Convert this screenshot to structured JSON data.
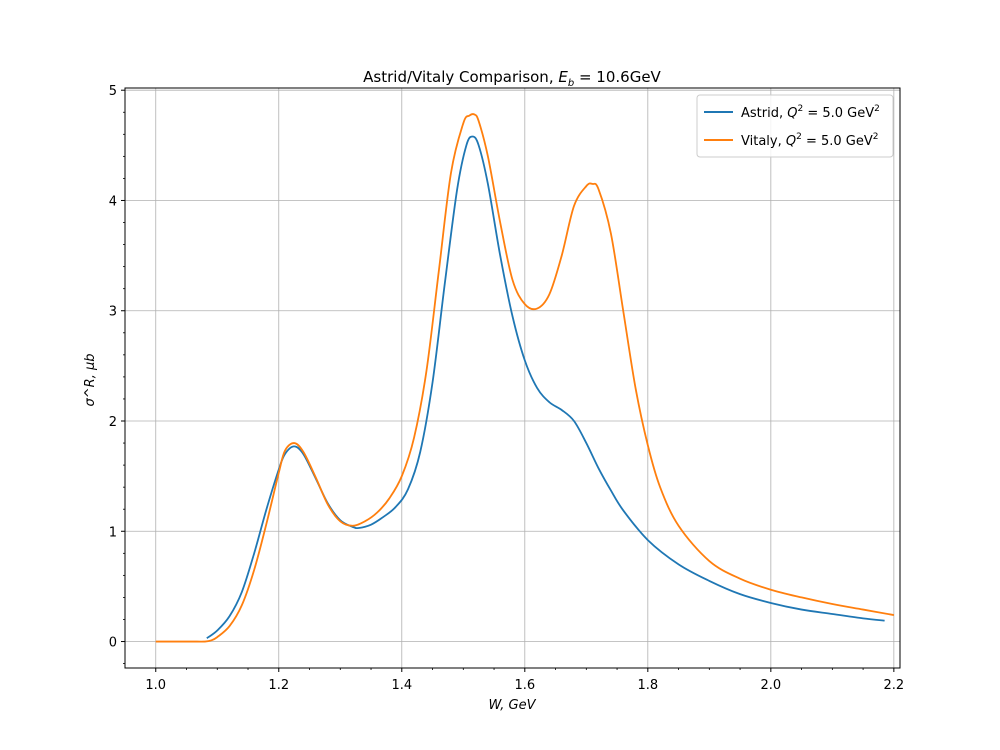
{
  "chart_data": {
    "type": "line",
    "title": "Astrid/Vitaly Comparison, E_b = 10.6GeV",
    "title_parts": {
      "main": "Astrid/Vitaly Comparison, ",
      "sym": "E",
      "sub": "b",
      "rest": " = 10.6GeV"
    },
    "xlabel": "W, GeV",
    "ylabel": "σ^R, μb",
    "xlim": [
      0.95,
      2.21
    ],
    "ylim": [
      -0.24,
      5.02
    ],
    "x_ticks": [
      1.0,
      1.2,
      1.4,
      1.6,
      1.8,
      2.0,
      2.2
    ],
    "x_tick_labels": [
      "1.0",
      "1.2",
      "1.4",
      "1.6",
      "1.8",
      "2.0",
      "2.2"
    ],
    "y_ticks": [
      0,
      1,
      2,
      3,
      4,
      5
    ],
    "y_tick_labels": [
      "0",
      "1",
      "2",
      "3",
      "4",
      "5"
    ],
    "grid": true,
    "legend_placement": "top-right",
    "series": [
      {
        "name": "Astrid, Q^2 = 5.0 GeV^2",
        "legend": {
          "pre": "Astrid, ",
          "q": "Q",
          "exp": "2",
          "mid": " = 5.0 GeV",
          "exp2": "2"
        },
        "color": "#1f77b4",
        "x": [
          1.083,
          1.1,
          1.12,
          1.14,
          1.16,
          1.18,
          1.2,
          1.21,
          1.225,
          1.24,
          1.26,
          1.28,
          1.3,
          1.32,
          1.33,
          1.35,
          1.37,
          1.39,
          1.41,
          1.43,
          1.45,
          1.47,
          1.49,
          1.505,
          1.515,
          1.525,
          1.54,
          1.56,
          1.58,
          1.6,
          1.62,
          1.64,
          1.66,
          1.68,
          1.7,
          1.72,
          1.74,
          1.76,
          1.8,
          1.85,
          1.9,
          1.95,
          2.0,
          2.05,
          2.1,
          2.15,
          2.185
        ],
        "y": [
          0.03,
          0.1,
          0.23,
          0.45,
          0.8,
          1.2,
          1.56,
          1.7,
          1.77,
          1.7,
          1.48,
          1.25,
          1.1,
          1.04,
          1.03,
          1.06,
          1.13,
          1.22,
          1.38,
          1.72,
          2.35,
          3.25,
          4.1,
          4.5,
          4.58,
          4.5,
          4.15,
          3.5,
          2.95,
          2.55,
          2.3,
          2.17,
          2.1,
          2.0,
          1.8,
          1.57,
          1.37,
          1.19,
          0.92,
          0.7,
          0.55,
          0.43,
          0.35,
          0.29,
          0.25,
          0.21,
          0.19
        ]
      },
      {
        "name": "Vitaly, Q^2 = 5.0 GeV^2",
        "legend": {
          "pre": "Vitaly, ",
          "q": "Q",
          "exp": "2",
          "mid": " = 5.0 GeV",
          "exp2": "2"
        },
        "color": "#ff7f0e",
        "x": [
          1.0,
          1.02,
          1.04,
          1.06,
          1.08,
          1.09,
          1.1,
          1.12,
          1.14,
          1.16,
          1.18,
          1.2,
          1.21,
          1.225,
          1.24,
          1.26,
          1.28,
          1.3,
          1.32,
          1.34,
          1.36,
          1.38,
          1.4,
          1.42,
          1.44,
          1.46,
          1.48,
          1.5,
          1.51,
          1.518,
          1.525,
          1.54,
          1.56,
          1.58,
          1.6,
          1.62,
          1.64,
          1.66,
          1.68,
          1.7,
          1.71,
          1.72,
          1.74,
          1.76,
          1.78,
          1.8,
          1.82,
          1.85,
          1.9,
          1.95,
          2.0,
          2.05,
          2.1,
          2.15,
          2.2
        ],
        "y": [
          0.0,
          0.0,
          0.0,
          0.0,
          0.0,
          0.01,
          0.04,
          0.14,
          0.33,
          0.65,
          1.07,
          1.53,
          1.73,
          1.8,
          1.72,
          1.49,
          1.24,
          1.09,
          1.05,
          1.09,
          1.17,
          1.3,
          1.5,
          1.85,
          2.45,
          3.35,
          4.25,
          4.7,
          4.77,
          4.78,
          4.72,
          4.4,
          3.8,
          3.28,
          3.06,
          3.02,
          3.15,
          3.5,
          3.95,
          4.13,
          4.15,
          4.1,
          3.7,
          3.0,
          2.3,
          1.78,
          1.4,
          1.05,
          0.73,
          0.57,
          0.47,
          0.4,
          0.34,
          0.29,
          0.24
        ]
      }
    ]
  }
}
